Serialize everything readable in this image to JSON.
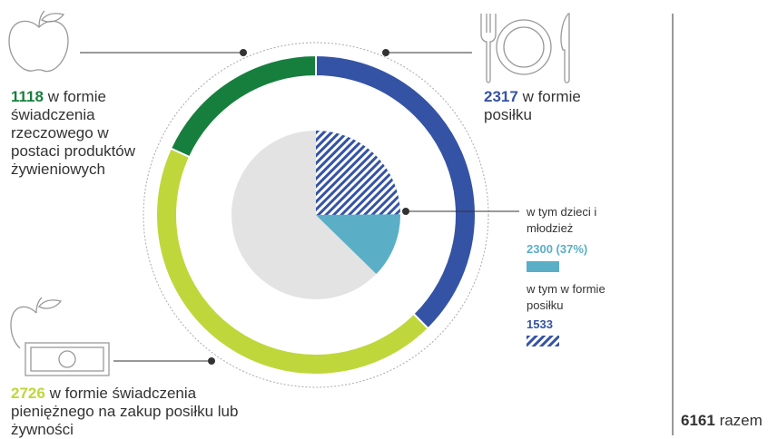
{
  "chart_data": {
    "type": "donut",
    "total": 6161,
    "total_label": "razem",
    "segments": [
      {
        "value": 2317,
        "label": "w formie posiłku",
        "color": "#3553a5"
      },
      {
        "value": 2726,
        "label": "w formie świadczenia pieniężnego na zakup posiłku lub żywności",
        "color": "#bfd73b"
      },
      {
        "value": 1118,
        "label": "w formie świadczenia rzeczowego w postaci produktów żywieniowych",
        "color": "#177f3d"
      }
    ],
    "inner": [
      {
        "name": "w tym dzieci i młodzież",
        "value": 2300,
        "value_label": "2300 (37%)",
        "color": "#5aafc6"
      },
      {
        "name": "w tym w formie posiłku",
        "value": 1533,
        "color": "#3553a5",
        "pattern": "hatch"
      }
    ],
    "rest_color": "#e3e3e3"
  }
}
